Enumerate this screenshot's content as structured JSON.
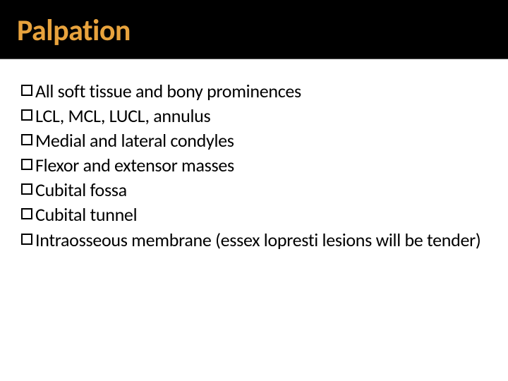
{
  "slide": {
    "title": "Palpation",
    "title_color": "#e8a33d",
    "title_bg": "#000000",
    "body_bg": "#ffffff",
    "body_color": "#000000",
    "title_fontsize": 42,
    "body_fontsize": 26,
    "bullets": [
      "All soft tissue and bony prominences",
      "LCL, MCL, LUCL, annulus",
      "Medial and lateral condyles",
      "Flexor and extensor masses",
      "Cubital fossa",
      "Cubital tunnel",
      "Intraosseous membrane (essex lopresti lesions will be tender)"
    ]
  }
}
